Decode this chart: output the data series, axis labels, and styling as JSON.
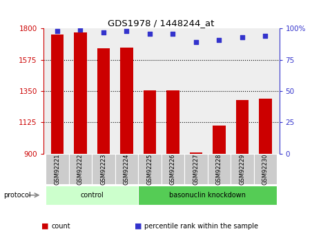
{
  "title": "GDS1978 / 1448244_at",
  "samples": [
    "GSM92221",
    "GSM92222",
    "GSM92223",
    "GSM92224",
    "GSM92225",
    "GSM92226",
    "GSM92227",
    "GSM92228",
    "GSM92229",
    "GSM92230"
  ],
  "bar_values": [
    1755,
    1770,
    1660,
    1665,
    1355,
    1355,
    910,
    1100,
    1285,
    1295
  ],
  "dot_values": [
    98,
    99,
    97,
    98,
    96,
    96,
    89,
    91,
    93,
    94
  ],
  "bar_color": "#cc0000",
  "dot_color": "#3333cc",
  "ylim_left": [
    900,
    1800
  ],
  "ylim_right": [
    0,
    100
  ],
  "yticks_left": [
    900,
    1125,
    1350,
    1575,
    1800
  ],
  "yticks_right": [
    0,
    25,
    50,
    75,
    100
  ],
  "ytick_right_labels": [
    "0",
    "25",
    "50",
    "75",
    "100%"
  ],
  "grid_values": [
    1125,
    1350,
    1575
  ],
  "groups": [
    {
      "label": "control",
      "start": 0,
      "end": 4,
      "color": "#ccffcc"
    },
    {
      "label": "basonuclin knockdown",
      "start": 4,
      "end": 10,
      "color": "#55cc55"
    }
  ],
  "protocol_label": "protocol",
  "legend_items": [
    {
      "color": "#cc0000",
      "label": "count"
    },
    {
      "color": "#3333cc",
      "label": "percentile rank within the sample"
    }
  ],
  "bar_width": 0.55,
  "background_color": "#ffffff",
  "plot_bg_color": "#eeeeee"
}
